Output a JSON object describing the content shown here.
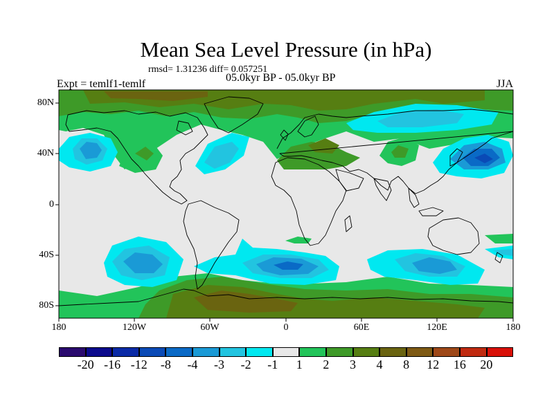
{
  "title": "Mean Sea Level Pressure (in hPa)",
  "stats": "rmsd= 1.31236 diff= 0.057251",
  "period": "05.0kyr BP - 05.0kyr BP",
  "expt": "Expt = temlf1-temlf",
  "season": "JJA",
  "lat_labels": [
    "80N",
    "40N",
    "0",
    "40S",
    "80S"
  ],
  "lon_labels": [
    "180",
    "120W",
    "60W",
    "0",
    "60E",
    "120E",
    "180"
  ],
  "colorbar": {
    "colors": [
      "#2a0a6e",
      "#0c0a8c",
      "#0a2aa6",
      "#0a4ab6",
      "#0a6ac6",
      "#1a9ad6",
      "#22c4e0",
      "#00e8f0",
      "#e8e8e8",
      "#22c45a",
      "#3e9a28",
      "#567e12",
      "#6a6410",
      "#7e5a14",
      "#9e4818",
      "#c02a10",
      "#d81008"
    ],
    "labels": [
      "-20",
      "-16",
      "-12",
      "-8",
      "-4",
      "-3",
      "-2",
      "-1",
      "1",
      "2",
      "3",
      "4",
      "8",
      "12",
      "16",
      "20"
    ]
  },
  "map_colors": {
    "neutral": "#e8e8e8",
    "light_green": "#22c45a",
    "mid_green": "#3e9a28",
    "olive": "#567e12",
    "brown": "#6a6410",
    "light_blue": "#00e8f0",
    "cyan": "#22c4e0",
    "mid_blue": "#1a9ad6",
    "blue": "#0a6ac6",
    "dark_blue": "#0a4ab6"
  }
}
